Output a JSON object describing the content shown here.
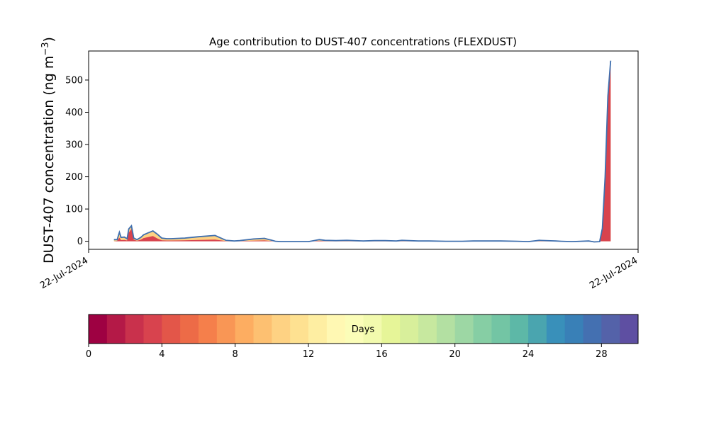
{
  "chart_data": [
    {
      "type": "area",
      "title": "Age contribution to DUST-407 concentrations (FLEXDUST)",
      "ylabel": "DUST-407 concentration (ng m",
      "ylabel_sup": "−3",
      "ylabel_close": ")",
      "ylim": [
        -25,
        590
      ],
      "yticks": [
        0,
        100,
        200,
        300,
        400,
        500
      ],
      "xtick_labels": [
        "22-Jul-2024",
        "22-Jul-2024"
      ],
      "grid": false,
      "x": [
        0.046,
        0.052,
        0.056,
        0.059,
        0.065,
        0.07,
        0.073,
        0.078,
        0.082,
        0.088,
        0.095,
        0.1,
        0.108,
        0.117,
        0.125,
        0.133,
        0.142,
        0.15,
        0.175,
        0.2,
        0.23,
        0.25,
        0.265,
        0.275,
        0.3,
        0.32,
        0.34,
        0.35,
        0.38,
        0.4,
        0.42,
        0.43,
        0.45,
        0.47,
        0.5,
        0.52,
        0.54,
        0.56,
        0.57,
        0.6,
        0.62,
        0.65,
        0.68,
        0.7,
        0.75,
        0.78,
        0.8,
        0.82,
        0.85,
        0.86,
        0.88,
        0.91,
        0.92,
        0.93,
        0.935,
        0.94,
        0.945,
        0.95
      ],
      "total": [
        5,
        5,
        28,
        12,
        13,
        8,
        38,
        48,
        10,
        5,
        12,
        20,
        26,
        32,
        22,
        10,
        8,
        8,
        10,
        14,
        18,
        3,
        1,
        2,
        7,
        9,
        0,
        -1,
        -1,
        -1,
        5,
        3,
        2,
        3,
        1,
        2,
        2,
        1,
        3,
        1,
        1,
        0,
        0,
        1,
        1,
        0,
        -1,
        3,
        1,
        0,
        -1,
        1,
        -2,
        -1,
        40,
        200,
        450,
        560
      ],
      "young_share": [
        0.0,
        0.3,
        0.4,
        0.3,
        0.3,
        0.3,
        0.7,
        0.8,
        0.5,
        0.3,
        0.4,
        0.5,
        0.5,
        0.5,
        0.4,
        0.3,
        0.3,
        0.3,
        0.3,
        0.3,
        0.3,
        0.3,
        0.3,
        0.3,
        0.3,
        0.3,
        0.3,
        0.3,
        0.3,
        0.3,
        0.3,
        0.3,
        0.3,
        0.3,
        0.3,
        0.3,
        0.3,
        0.3,
        0.3,
        0.3,
        0.3,
        0.3,
        0.3,
        0.3,
        0.3,
        0.3,
        0.3,
        0.3,
        0.3,
        0.3,
        0.3,
        0.3,
        0.3,
        0.6,
        0.95,
        0.97,
        0.98,
        0.98
      ],
      "x_data_range": [
        0,
        1
      ]
    },
    {
      "type": "heatmap",
      "label": "Days",
      "range": [
        0,
        30
      ],
      "ticks": [
        0,
        4,
        8,
        12,
        16,
        20,
        24,
        28
      ],
      "tick_labels": [
        "0",
        "4",
        "8",
        "12",
        "16",
        "20",
        "24",
        "28"
      ],
      "bins": 30,
      "colors": [
        "#9e0142",
        "#b41947",
        "#c9314c",
        "#d8434e",
        "#e35649",
        "#ed6b47",
        "#f57f4b",
        "#f99655",
        "#fdad61",
        "#fdc071",
        "#fed283",
        "#fee191",
        "#feeea2",
        "#fff8b3",
        "#fbfdb8",
        "#f2faae",
        "#e6f598",
        "#d8ef9b",
        "#c7e89f",
        "#b3e0a2",
        "#9dd7a4",
        "#86cea4",
        "#73c5a4",
        "#5db8a7",
        "#4aa5af",
        "#3990ba",
        "#3980b7",
        "#4470b1",
        "#5462a9",
        "#5e4fa2"
      ]
    }
  ]
}
